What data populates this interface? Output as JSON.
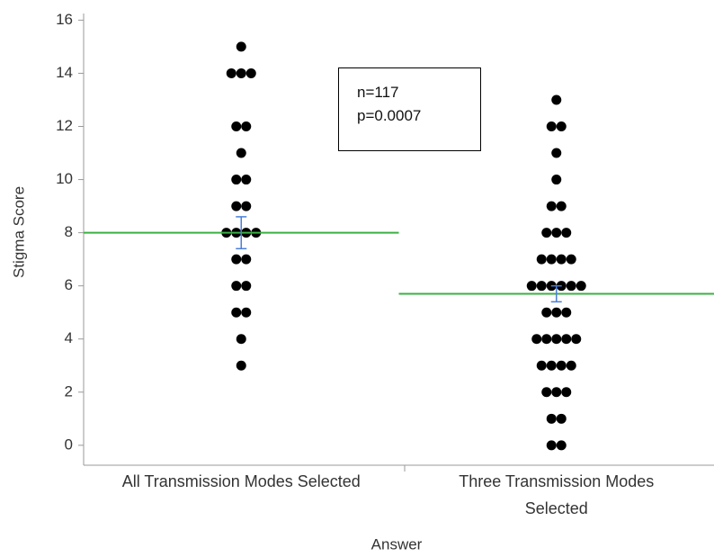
{
  "chart_data": {
    "type": "strip",
    "x_label": "Answer",
    "y_label": "Stigma Score",
    "categories": [
      "All Transmission Modes Selected",
      "Three Transmission Modes Selected"
    ],
    "values": [
      [
        15,
        14,
        14,
        14,
        12,
        12,
        11,
        10,
        10,
        9,
        9,
        8,
        8,
        8,
        8,
        7,
        7,
        6,
        6,
        5,
        5,
        4,
        3
      ],
      [
        13,
        12,
        12,
        11,
        10,
        9,
        9,
        8,
        8,
        8,
        7,
        7,
        7,
        7,
        6,
        6,
        6,
        6,
        6,
        6,
        5,
        5,
        5,
        4,
        4,
        4,
        4,
        4,
        3,
        3,
        3,
        3,
        2,
        2,
        2,
        1,
        1,
        0,
        0
      ]
    ],
    "means": [
      8.0,
      5.7
    ],
    "errors": [
      0.6,
      0.3
    ],
    "color": "#000000",
    "mean_color": "#3cb043",
    "error_color": "#4a7fd8",
    "annotations": [
      "n=117",
      "p=0.0007"
    ],
    "ylim": [
      -0.75,
      16.25
    ],
    "yticks": [
      0,
      2,
      4,
      6,
      8,
      10,
      12,
      14,
      16
    ]
  }
}
